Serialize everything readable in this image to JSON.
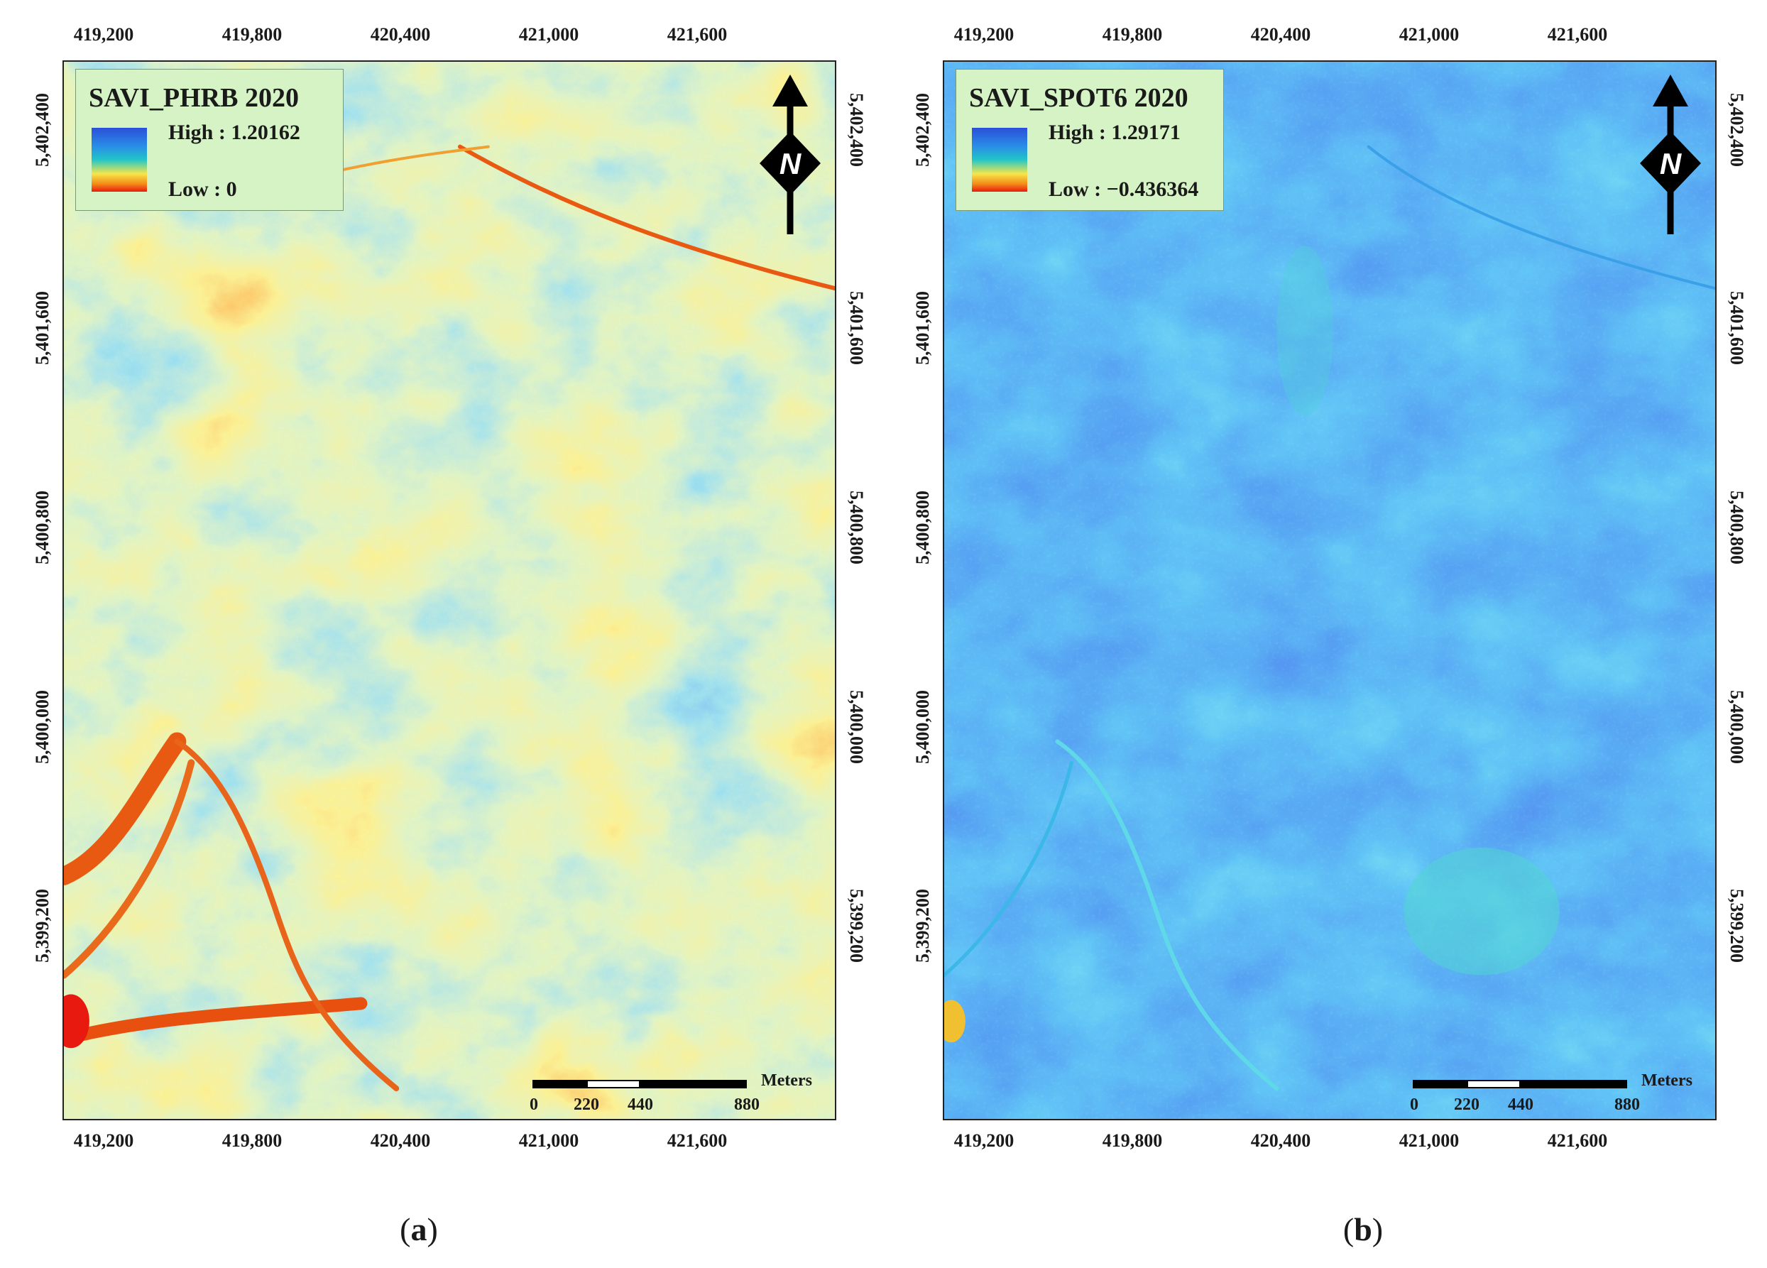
{
  "panels": [
    {
      "id": "a",
      "caption_letter": "a",
      "legend": {
        "title": "SAVI_PHRB 2020",
        "high": "High : 1.20162",
        "low": "Low : 0"
      },
      "palette": "jet",
      "x_ticks": [
        "419,200",
        "419,800",
        "420,400",
        "421,000",
        "421,600"
      ],
      "y_ticks": [
        "5,402,400",
        "5,401,600",
        "5,400,800",
        "5,400,000",
        "5,399,200"
      ],
      "north_label": "N",
      "scalebar": {
        "unit": "Meters",
        "labels": [
          "0",
          "220",
          "440",
          "880"
        ]
      }
    },
    {
      "id": "b",
      "caption_letter": "b",
      "legend": {
        "title": "SAVI_SPOT6 2020",
        "high": "High : 1.29171",
        "low": "Low : −0.436364"
      },
      "palette": "blue",
      "x_ticks": [
        "419,200",
        "419,800",
        "420,400",
        "421,000",
        "421,600"
      ],
      "y_ticks": [
        "5,402,400",
        "5,401,600",
        "5,400,800",
        "5,400,000",
        "5,399,200"
      ],
      "north_label": "N",
      "scalebar": {
        "unit": "Meters",
        "labels": [
          "0",
          "220",
          "440",
          "880"
        ]
      }
    }
  ],
  "colors": {
    "ramp_high": "#2b4fd8",
    "ramp_mid": "#22c6c8",
    "ramp_yellow": "#f6e64a",
    "ramp_low": "#e81a10",
    "legend_bg": "#d5f3c4"
  }
}
